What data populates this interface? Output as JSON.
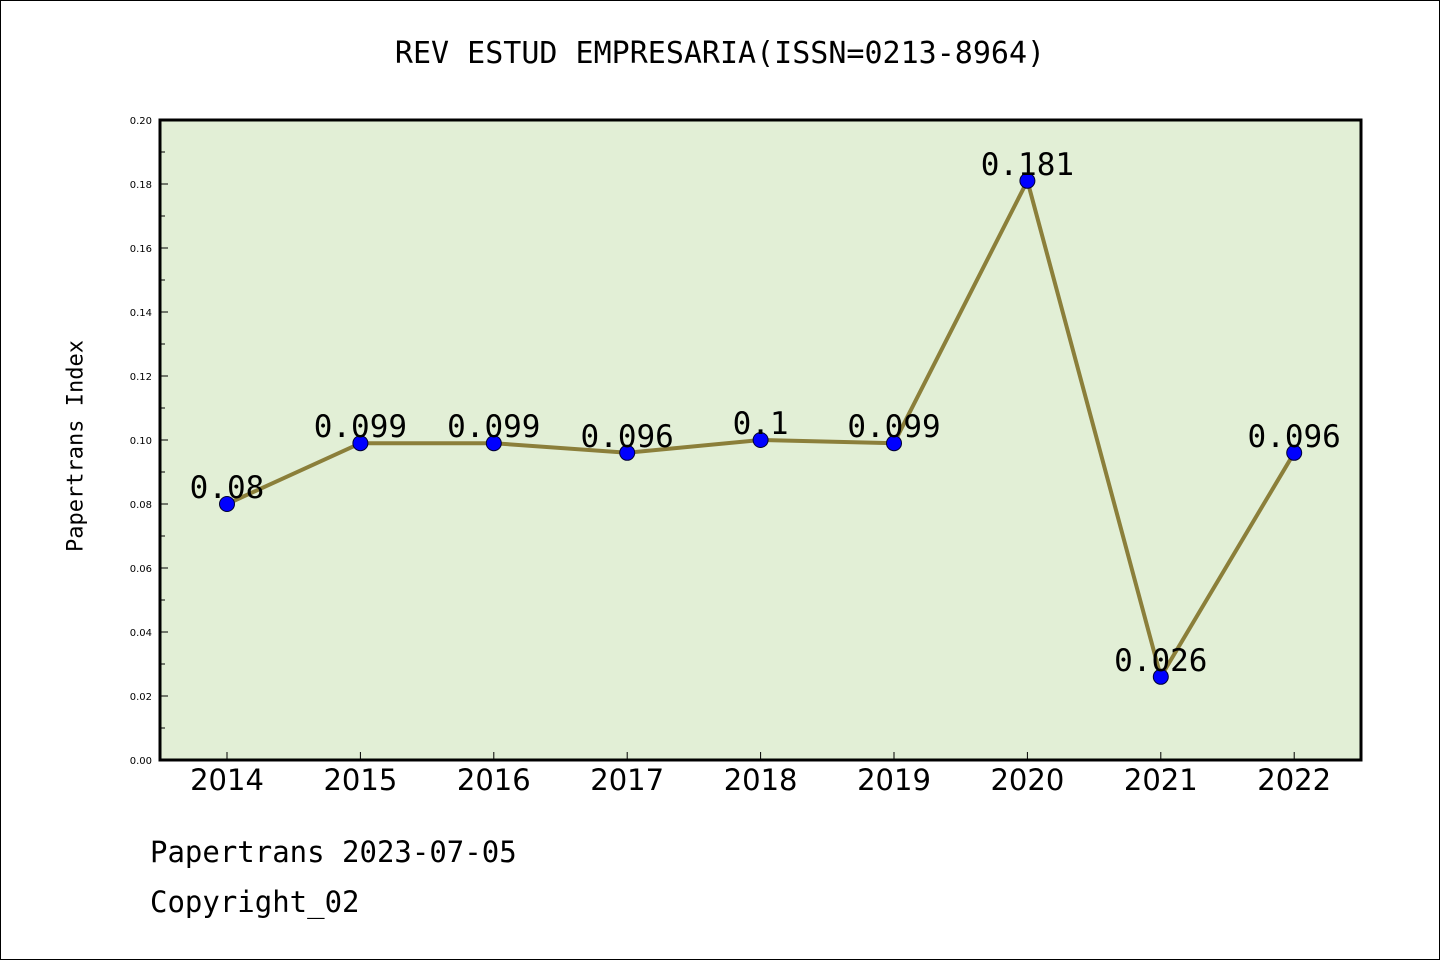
{
  "chart_data": {
    "type": "line",
    "title": "REV ESTUD EMPRESARIA(ISSN=0213-8964)",
    "xlabel": "",
    "ylabel": "Papertrans Index",
    "categories": [
      "2014",
      "2015",
      "2016",
      "2017",
      "2018",
      "2019",
      "2020",
      "2021",
      "2022"
    ],
    "series": [
      {
        "values": [
          0.08,
          0.099,
          0.099,
          0.096,
          0.1,
          0.099,
          0.181,
          0.026,
          0.096
        ]
      }
    ],
    "data_labels": [
      "0.08",
      "0.099",
      "0.099",
      "0.096",
      "0.1",
      "0.099",
      "0.181",
      "0.026",
      "0.096"
    ],
    "ylim": [
      0,
      0.2
    ],
    "yticks": [
      "0.00",
      "0.02",
      "0.04",
      "0.06",
      "0.08",
      "0.10",
      "0.12",
      "0.14",
      "0.16",
      "0.18",
      "0.20"
    ],
    "grid": false,
    "colors": {
      "plot_bg": "#e2efd6",
      "line": "#8b7f3a",
      "marker": "#0000ff"
    }
  },
  "footer": {
    "line1": "Papertrans 2023-07-05",
    "line2": "Copyright_02"
  }
}
